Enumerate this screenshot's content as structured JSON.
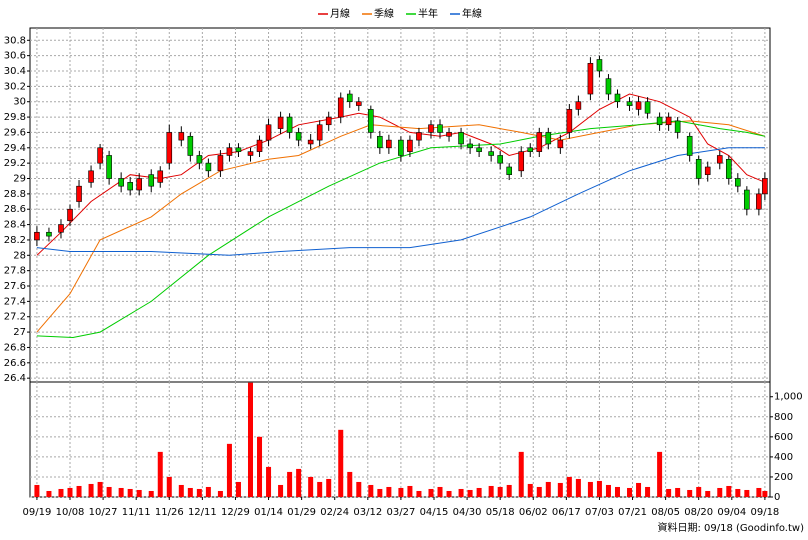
{
  "chart_data": {
    "type": "candlestick",
    "footer": "資料日期: 09/18 (Goodinfo.tw)",
    "grid": true,
    "xlim": [
      -2.3,
      243.7
    ],
    "xticks": [
      {
        "value": 0,
        "label": "09/19"
      },
      {
        "value": 11,
        "label": "10/08"
      },
      {
        "value": 22,
        "label": "10/27"
      },
      {
        "value": 33,
        "label": "11/11"
      },
      {
        "value": 44,
        "label": "11/26"
      },
      {
        "value": 55,
        "label": "12/11"
      },
      {
        "value": 66,
        "label": "12/29"
      },
      {
        "value": 77,
        "label": "01/14"
      },
      {
        "value": 88,
        "label": "01/29"
      },
      {
        "value": 99,
        "label": "02/24"
      },
      {
        "value": 110,
        "label": "03/12"
      },
      {
        "value": 121,
        "label": "03/27"
      },
      {
        "value": 132,
        "label": "04/15"
      },
      {
        "value": 143,
        "label": "04/30"
      },
      {
        "value": 154,
        "label": "05/18"
      },
      {
        "value": 165,
        "label": "06/02"
      },
      {
        "value": 176,
        "label": "06/17"
      },
      {
        "value": 187,
        "label": "07/03"
      },
      {
        "value": 198,
        "label": "07/21"
      },
      {
        "value": 209,
        "label": "08/05"
      },
      {
        "value": 220,
        "label": "08/20"
      },
      {
        "value": 231,
        "label": "09/04"
      },
      {
        "value": 242,
        "label": "09/18"
      }
    ],
    "ylim": [
      26.35,
      30.96
    ],
    "yticks": [
      26.4,
      26.6,
      26.8,
      27,
      27.2,
      27.4,
      27.6,
      27.8,
      28,
      28.2,
      28.4,
      28.6,
      28.8,
      29,
      29.2,
      29.4,
      29.6,
      29.8,
      30,
      30.2,
      30.4,
      30.6,
      30.8
    ],
    "candles": {
      "up_color": "#ff0000",
      "down_color": "#00cc00",
      "x": [
        0,
        4,
        8,
        11,
        14,
        18,
        21,
        24,
        28,
        31,
        34,
        38,
        41,
        44,
        48,
        51,
        54,
        57,
        61,
        64,
        67,
        71,
        74,
        77,
        81,
        84,
        87,
        91,
        94,
        97,
        101,
        104,
        107,
        111,
        114,
        117,
        121,
        124,
        127,
        131,
        134,
        137,
        141,
        144,
        147,
        151,
        154,
        157,
        161,
        164,
        167,
        170,
        174,
        177,
        180,
        184,
        187,
        190,
        193,
        197,
        200,
        203,
        207,
        210,
        213,
        217,
        220,
        223,
        227,
        230,
        233,
        236,
        240,
        242
      ],
      "open": [
        28.2,
        28.3,
        28.3,
        28.45,
        28.7,
        28.95,
        29.2,
        29.3,
        29.0,
        28.95,
        28.85,
        29.05,
        28.95,
        29.2,
        29.5,
        29.55,
        29.3,
        29.2,
        29.1,
        29.3,
        29.4,
        29.3,
        29.35,
        29.5,
        29.65,
        29.8,
        29.6,
        29.45,
        29.5,
        29.7,
        29.8,
        30.1,
        29.95,
        29.9,
        29.55,
        29.4,
        29.5,
        29.35,
        29.5,
        29.6,
        29.7,
        29.55,
        29.6,
        29.45,
        29.4,
        29.35,
        29.3,
        29.15,
        29.1,
        29.4,
        29.35,
        29.6,
        29.4,
        29.6,
        29.9,
        30.1,
        30.55,
        30.3,
        30.1,
        30.0,
        29.9,
        30.0,
        29.8,
        29.7,
        29.75,
        29.55,
        29.25,
        29.05,
        29.2,
        29.25,
        29.0,
        28.85,
        28.6,
        28.8
      ],
      "high": [
        28.38,
        28.36,
        28.47,
        28.66,
        28.98,
        29.17,
        29.45,
        29.36,
        29.08,
        29.02,
        29.07,
        29.12,
        29.16,
        29.7,
        29.68,
        29.6,
        29.36,
        29.26,
        29.37,
        29.46,
        29.46,
        29.4,
        29.56,
        29.78,
        29.87,
        29.85,
        29.66,
        29.58,
        29.76,
        29.87,
        30.12,
        30.15,
        30.06,
        29.95,
        29.62,
        29.57,
        29.55,
        29.56,
        29.66,
        29.76,
        29.77,
        29.66,
        29.66,
        29.52,
        29.46,
        29.42,
        29.36,
        29.2,
        29.42,
        29.46,
        29.66,
        29.66,
        29.57,
        29.97,
        30.08,
        30.58,
        30.6,
        30.36,
        30.16,
        30.06,
        30.07,
        30.06,
        29.86,
        29.86,
        29.8,
        29.6,
        29.3,
        29.22,
        29.36,
        29.3,
        29.07,
        28.9,
        28.87,
        29.08
      ],
      "low": [
        28.12,
        28.18,
        28.22,
        28.38,
        28.62,
        28.88,
        29.12,
        28.92,
        28.82,
        28.78,
        28.78,
        28.82,
        28.88,
        29.12,
        29.42,
        29.22,
        29.12,
        29.02,
        29.02,
        29.22,
        29.28,
        29.22,
        29.28,
        29.42,
        29.58,
        29.52,
        29.42,
        29.38,
        29.42,
        29.62,
        29.72,
        29.92,
        29.88,
        29.52,
        29.32,
        29.32,
        29.22,
        29.28,
        29.42,
        29.52,
        29.52,
        29.48,
        29.38,
        29.32,
        29.28,
        29.22,
        29.12,
        28.98,
        29.02,
        29.28,
        29.28,
        29.38,
        29.32,
        29.52,
        29.82,
        30.02,
        30.32,
        30.02,
        29.92,
        29.88,
        29.82,
        29.78,
        29.62,
        29.62,
        29.52,
        29.22,
        28.92,
        28.96,
        29.12,
        28.92,
        28.82,
        28.52,
        28.52,
        28.72
      ],
      "close": [
        28.3,
        28.25,
        28.4,
        28.6,
        28.9,
        29.1,
        29.4,
        29.0,
        28.9,
        28.85,
        29.0,
        28.9,
        29.1,
        29.6,
        29.6,
        29.3,
        29.2,
        29.1,
        29.3,
        29.4,
        29.35,
        29.35,
        29.5,
        29.7,
        29.8,
        29.6,
        29.5,
        29.5,
        29.7,
        29.8,
        30.05,
        30.0,
        30.0,
        29.6,
        29.4,
        29.5,
        29.3,
        29.5,
        29.6,
        29.7,
        29.6,
        29.6,
        29.45,
        29.4,
        29.35,
        29.3,
        29.2,
        29.05,
        29.35,
        29.35,
        29.6,
        29.45,
        29.5,
        29.9,
        30.0,
        30.5,
        30.4,
        30.1,
        30.0,
        29.95,
        30.0,
        29.85,
        29.7,
        29.8,
        29.6,
        29.3,
        29.0,
        29.15,
        29.3,
        29.0,
        28.9,
        28.6,
        28.8,
        29.0
      ]
    },
    "lines": [
      {
        "name": "月線",
        "color": "#e00000",
        "x": [
          0,
          8,
          18,
          31,
          41,
          48,
          57,
          67,
          77,
          87,
          101,
          107,
          114,
          124,
          134,
          141,
          151,
          157,
          167,
          177,
          187,
          197,
          207,
          217,
          223,
          230,
          236,
          242
        ],
        "values": [
          28.0,
          28.3,
          28.7,
          29.05,
          29.0,
          29.05,
          29.3,
          29.35,
          29.5,
          29.7,
          29.8,
          29.85,
          29.8,
          29.6,
          29.55,
          29.6,
          29.45,
          29.3,
          29.4,
          29.6,
          29.9,
          30.1,
          30.0,
          29.8,
          29.45,
          29.3,
          29.05,
          28.95
        ]
      },
      {
        "name": "季線",
        "color": "#f07000",
        "x": [
          0,
          11,
          21,
          38,
          48,
          61,
          77,
          87,
          101,
          111,
          127,
          147,
          161,
          174,
          187,
          200,
          217,
          230,
          242
        ],
        "values": [
          27.0,
          27.5,
          28.2,
          28.5,
          28.8,
          29.1,
          29.25,
          29.3,
          29.55,
          29.7,
          29.65,
          29.7,
          29.6,
          29.5,
          29.6,
          29.7,
          29.75,
          29.7,
          29.55
        ]
      },
      {
        "name": "半年",
        "color": "#00cc00",
        "x": [
          0,
          12,
          21,
          38,
          57,
          77,
          97,
          114,
          131,
          154,
          167,
          184,
          200,
          213,
          227,
          236,
          242
        ],
        "values": [
          26.95,
          26.93,
          27.0,
          27.4,
          28.0,
          28.5,
          28.9,
          29.2,
          29.4,
          29.45,
          29.55,
          29.65,
          29.7,
          29.75,
          29.65,
          29.6,
          29.55
        ]
      },
      {
        "name": "年線",
        "color": "#1060d0",
        "x": [
          0,
          11,
          38,
          64,
          81,
          104,
          124,
          141,
          164,
          180,
          197,
          213,
          230,
          242
        ],
        "values": [
          28.1,
          28.05,
          28.05,
          28.0,
          28.05,
          28.1,
          28.1,
          28.2,
          28.5,
          28.8,
          29.1,
          29.3,
          29.4,
          29.4
        ]
      }
    ],
    "volume": {
      "color": "#ff0000",
      "ylim": [
        0,
        1147
      ],
      "yticks": [
        0,
        200,
        400,
        600,
        800,
        {
          "value": 1000,
          "label": "1,000"
        }
      ],
      "values": [
        120,
        60,
        80,
        90,
        110,
        130,
        150,
        100,
        90,
        80,
        70,
        60,
        450,
        200,
        120,
        90,
        80,
        100,
        60,
        530,
        150,
        1140,
        600,
        300,
        120,
        250,
        280,
        200,
        150,
        180,
        670,
        250,
        150,
        120,
        80,
        100,
        90,
        110,
        60,
        80,
        100,
        60,
        80,
        70,
        90,
        110,
        100,
        120,
        450,
        130,
        100,
        150,
        140,
        200,
        180,
        150,
        160,
        120,
        100,
        90,
        140,
        100,
        450,
        80,
        90,
        70,
        100,
        60,
        90,
        110,
        80,
        70,
        90,
        60
      ]
    }
  }
}
